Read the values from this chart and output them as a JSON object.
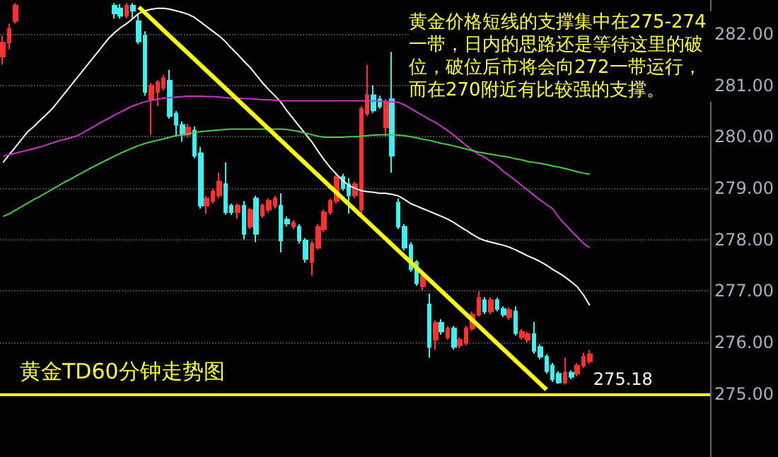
{
  "chart_data": {
    "type": "candlestick",
    "title": "黄金TD60分钟走势图",
    "annotations": [
      "黄金价格短线的支撑集中在275-274一带，日内的思路还是等待这里的破位，破位后市将会向272一带运行，而在270附近有比较强的支撑。",
      "275.18"
    ],
    "categories": [
      null,
      null,
      null,
      null,
      null,
      null,
      null,
      null,
      null,
      null,
      null,
      null,
      null,
      null,
      null,
      null,
      null,
      null,
      null,
      null,
      null,
      null,
      null,
      null,
      null,
      null,
      null,
      null,
      null,
      null,
      null,
      null,
      null,
      null,
      null,
      null,
      null,
      null,
      null,
      null,
      null,
      null,
      null,
      null,
      null,
      null,
      null,
      null,
      null,
      null,
      null,
      null,
      null,
      null,
      null,
      null,
      null,
      null,
      null,
      null,
      null,
      null,
      null,
      null,
      null,
      null,
      null,
      null,
      null,
      null,
      null,
      null,
      null,
      null,
      null,
      null,
      null,
      null,
      null,
      null,
      null,
      null,
      null,
      null,
      null,
      null,
      null,
      null,
      null,
      null,
      null,
      null,
      null,
      null,
      null,
      null,
      null,
      null,
      null,
      null,
      null,
      null,
      null,
      null,
      null,
      null,
      null,
      null,
      null,
      null,
      null,
      null,
      null,
      null,
      null
    ],
    "ohlc": [
      [
        281.56,
        281.97,
        281.4,
        281.83
      ],
      [
        281.83,
        282.2,
        281.7,
        282.1
      ],
      [
        282.25,
        282.6,
        282.2,
        282.55
      ],
      null,
      null,
      null,
      null,
      null,
      null,
      null,
      null,
      null,
      null,
      null,
      null,
      null,
      null,
      null,
      [
        282.55,
        282.6,
        282.3,
        282.4
      ],
      [
        282.5,
        282.58,
        282.3,
        282.35
      ],
      [
        282.35,
        282.6,
        282.3,
        282.55
      ],
      [
        282.55,
        282.6,
        282.3,
        282.45
      ],
      [
        282.25,
        282.4,
        281.8,
        281.85
      ],
      [
        281.97,
        282.05,
        280.8,
        280.87
      ],
      [
        280.73,
        281.05,
        280.04,
        281.0
      ],
      [
        280.87,
        281.1,
        280.6,
        281.06
      ],
      [
        280.95,
        281.2,
        280.9,
        281.14
      ],
      [
        281.09,
        281.3,
        280.35,
        280.4
      ],
      [
        280.45,
        280.5,
        280.0,
        280.23
      ],
      [
        280.23,
        280.3,
        279.9,
        280.04
      ],
      [
        280.04,
        280.25,
        279.98,
        280.18
      ],
      [
        280.12,
        280.2,
        279.58,
        279.63
      ],
      [
        279.68,
        279.8,
        278.6,
        278.66
      ],
      [
        278.66,
        278.85,
        278.5,
        278.8
      ],
      [
        278.75,
        279.0,
        278.7,
        278.94
      ],
      [
        278.86,
        279.3,
        278.8,
        279.13
      ],
      [
        279.08,
        279.5,
        278.48,
        278.53
      ],
      [
        278.66,
        278.7,
        278.48,
        278.53
      ],
      [
        278.53,
        278.7,
        278.4,
        278.66
      ],
      [
        278.66,
        278.75,
        278.0,
        278.11
      ],
      [
        278.25,
        278.62,
        278.2,
        278.58
      ],
      [
        278.8,
        278.85,
        277.95,
        278.11
      ],
      [
        278.47,
        278.7,
        278.42,
        278.66
      ],
      [
        278.58,
        278.8,
        278.52,
        278.75
      ],
      [
        278.66,
        278.85,
        278.6,
        278.8
      ],
      [
        278.66,
        278.9,
        277.75,
        277.98
      ],
      [
        278.39,
        278.45,
        278.25,
        278.31
      ],
      [
        278.25,
        278.38,
        278.2,
        278.33
      ],
      [
        278.25,
        278.3,
        277.92,
        277.98
      ],
      [
        277.98,
        278.03,
        277.55,
        277.62
      ],
      [
        277.56,
        277.97,
        277.3,
        277.92
      ],
      [
        277.84,
        278.3,
        277.8,
        278.25
      ],
      [
        278.2,
        278.58,
        278.15,
        278.53
      ],
      [
        278.53,
        278.8,
        278.48,
        278.75
      ],
      [
        278.75,
        279.3,
        278.7,
        279.22
      ],
      [
        279.22,
        279.28,
        278.95,
        279.0
      ],
      [
        279.08,
        279.2,
        278.5,
        278.86
      ],
      [
        278.86,
        279.12,
        278.8,
        279.08
      ],
      [
        278.58,
        280.6,
        278.5,
        280.54
      ],
      [
        280.45,
        281.4,
        280.4,
        280.81
      ],
      [
        280.81,
        281.0,
        280.46,
        280.51
      ],
      [
        280.73,
        280.8,
        280.54,
        280.59
      ],
      [
        280.18,
        280.73,
        280.0,
        280.68
      ],
      [
        280.73,
        281.65,
        279.3,
        279.63
      ],
      [
        278.72,
        278.8,
        278.2,
        278.25
      ],
      [
        278.25,
        278.3,
        277.79,
        277.84
      ],
      [
        277.89,
        277.95,
        277.37,
        277.42
      ],
      [
        277.56,
        277.6,
        277.1,
        277.15
      ],
      [
        277.09,
        277.34,
        277.0,
        277.29
      ],
      [
        276.74,
        276.95,
        275.7,
        275.91
      ],
      [
        276.05,
        276.43,
        275.85,
        276.38
      ],
      [
        276.38,
        276.45,
        276.15,
        276.21
      ],
      [
        276.1,
        276.32,
        276.05,
        276.27
      ],
      [
        276.27,
        276.32,
        275.86,
        275.91
      ],
      [
        275.94,
        276.1,
        275.89,
        276.05
      ],
      [
        275.99,
        276.32,
        275.94,
        276.27
      ],
      [
        276.27,
        276.6,
        276.22,
        276.54
      ],
      [
        276.54,
        277.0,
        276.5,
        276.87
      ],
      [
        276.82,
        276.88,
        276.55,
        276.6
      ],
      [
        276.6,
        276.88,
        276.55,
        276.82
      ],
      [
        276.82,
        276.87,
        276.6,
        276.65
      ],
      [
        276.65,
        276.7,
        276.49,
        276.54
      ],
      [
        276.49,
        276.68,
        276.44,
        276.63
      ],
      [
        276.6,
        276.7,
        276.13,
        276.18
      ],
      [
        276.1,
        276.26,
        276.05,
        276.21
      ],
      [
        276.05,
        276.21,
        276.0,
        276.16
      ],
      [
        276.16,
        276.4,
        275.78,
        275.83
      ],
      [
        275.91,
        275.96,
        275.67,
        275.72
      ],
      [
        275.72,
        275.77,
        275.39,
        275.44
      ],
      [
        275.55,
        275.6,
        275.23,
        275.28
      ],
      [
        275.39,
        275.44,
        275.19,
        275.22
      ],
      [
        275.22,
        275.7,
        275.18,
        275.41
      ],
      [
        275.41,
        275.46,
        275.28,
        275.33
      ],
      [
        275.39,
        275.6,
        275.34,
        275.55
      ],
      [
        275.55,
        275.8,
        275.5,
        275.72
      ],
      [
        275.63,
        275.85,
        275.58,
        275.77
      ],
      null,
      null,
      null,
      null,
      null,
      null,
      null,
      null,
      null,
      null,
      null,
      null,
      null,
      null,
      null,
      null,
      null,
      null,
      null
    ],
    "series": [
      {
        "type": "line",
        "color": "#ffffff",
        "values": [
          279.5,
          279.65,
          279.8,
          279.95,
          280.1,
          280.2,
          280.32,
          280.43,
          280.55,
          280.7,
          280.85,
          281.0,
          281.15,
          281.3,
          281.45,
          281.6,
          281.75,
          281.9,
          282.02,
          282.12,
          282.2,
          282.3,
          282.4,
          282.45,
          282.48,
          282.5,
          282.5,
          282.48,
          282.45,
          282.42,
          282.38,
          282.32,
          282.23,
          282.14,
          282.05,
          281.96,
          281.85,
          281.72,
          281.6,
          281.47,
          281.35,
          281.2,
          281.05,
          280.92,
          280.8,
          280.67,
          280.5,
          280.35,
          280.2,
          280.05,
          279.9,
          279.72,
          279.55,
          279.4,
          279.27,
          279.15,
          279.05,
          279.0,
          278.95,
          278.93,
          278.92,
          278.9,
          278.9,
          278.88,
          278.85,
          278.78,
          278.7,
          278.65,
          278.6,
          278.55,
          278.5,
          278.45,
          278.4,
          278.33,
          278.25,
          278.18,
          278.1,
          278.03,
          277.98,
          277.95,
          277.92,
          277.89,
          277.85,
          277.8,
          277.74,
          277.68,
          277.63,
          277.57,
          277.5,
          277.42,
          277.35,
          277.27,
          277.18,
          277.08,
          276.92,
          276.72,
          null,
          null,
          null,
          null,
          null,
          null,
          null,
          null,
          null,
          null,
          null,
          null,
          null,
          null,
          null,
          null,
          null,
          null,
          null
        ]
      },
      {
        "type": "line",
        "color": "#d030d0",
        "values": [
          279.62,
          279.65,
          279.68,
          279.71,
          279.74,
          279.77,
          279.8,
          279.84,
          279.88,
          279.92,
          279.95,
          279.98,
          280.02,
          280.08,
          280.15,
          280.22,
          280.29,
          280.35,
          280.42,
          280.48,
          280.54,
          280.6,
          280.64,
          280.68,
          280.71,
          280.73,
          280.75,
          280.76,
          280.77,
          280.78,
          280.79,
          280.79,
          280.79,
          280.78,
          280.78,
          280.77,
          280.76,
          280.75,
          280.75,
          280.74,
          280.74,
          280.73,
          280.72,
          280.72,
          280.71,
          280.7,
          280.7,
          280.7,
          280.7,
          280.7,
          280.7,
          280.7,
          280.7,
          280.7,
          280.7,
          280.7,
          280.7,
          280.7,
          280.7,
          280.7,
          280.7,
          280.69,
          280.69,
          280.68,
          280.67,
          280.62,
          280.55,
          280.48,
          280.41,
          280.34,
          280.28,
          280.2,
          280.12,
          280.03,
          279.93,
          279.83,
          279.74,
          279.66,
          279.6,
          279.52,
          279.44,
          279.33,
          279.24,
          279.15,
          279.05,
          278.96,
          278.86,
          278.77,
          278.68,
          278.6,
          278.43,
          278.3,
          278.17,
          278.05,
          277.93,
          277.84,
          null,
          null,
          null,
          null,
          null,
          null,
          null,
          null,
          null,
          null,
          null,
          null,
          null,
          null,
          null,
          null,
          null,
          null,
          null
        ]
      },
      {
        "type": "line",
        "color": "#40d040",
        "values": [
          278.45,
          278.5,
          278.57,
          278.64,
          278.71,
          278.78,
          278.84,
          278.91,
          278.98,
          279.05,
          279.12,
          279.18,
          279.25,
          279.31,
          279.38,
          279.44,
          279.5,
          279.56,
          279.62,
          279.68,
          279.73,
          279.78,
          279.83,
          279.87,
          279.9,
          279.93,
          279.96,
          279.99,
          280.02,
          280.04,
          280.06,
          280.08,
          280.1,
          280.11,
          280.12,
          280.13,
          280.14,
          280.15,
          280.15,
          280.15,
          280.15,
          280.15,
          280.15,
          280.15,
          280.15,
          280.15,
          280.14,
          280.12,
          280.1,
          280.07,
          280.04,
          280.01,
          279.99,
          279.99,
          279.99,
          279.99,
          280.0,
          280.0,
          280.01,
          280.02,
          280.03,
          280.04,
          280.04,
          280.04,
          280.03,
          280.02,
          280.0,
          279.98,
          279.95,
          279.93,
          279.9,
          279.87,
          279.85,
          279.82,
          279.79,
          279.76,
          279.73,
          279.7,
          279.68,
          279.66,
          279.64,
          279.62,
          279.6,
          279.57,
          279.55,
          279.52,
          279.5,
          279.48,
          279.46,
          279.43,
          279.41,
          279.38,
          279.35,
          279.32,
          279.29,
          279.27,
          null,
          null,
          null,
          null,
          null,
          null,
          null,
          null,
          null,
          null,
          null,
          null,
          null,
          null,
          null,
          null,
          null,
          null,
          null
        ]
      },
      {
        "type": "line",
        "color": "#ffff00",
        "values": [
          null,
          null,
          null,
          null,
          null,
          null,
          null,
          null,
          null,
          null,
          null,
          null,
          null,
          null,
          null,
          null,
          null,
          null,
          null,
          null,
          null,
          null,
          282.52,
          null,
          null,
          null,
          null,
          null,
          null,
          null,
          null,
          null,
          null,
          null,
          null,
          null,
          null,
          null,
          null,
          null,
          null,
          null,
          null,
          null,
          null,
          null,
          null,
          null,
          null,
          null,
          null,
          null,
          null,
          null,
          null,
          null,
          null,
          null,
          null,
          null,
          null,
          null,
          null,
          null,
          null,
          null,
          null,
          null,
          null,
          null,
          null,
          null,
          null,
          null,
          null,
          null,
          null,
          null,
          null,
          null,
          null,
          null,
          null,
          null,
          null,
          null,
          null,
          null,
          275.08,
          null,
          null,
          null,
          null,
          null,
          null,
          null,
          null,
          null,
          null,
          null,
          null,
          null,
          null,
          null,
          null,
          null,
          null,
          null,
          null,
          null,
          null,
          null,
          null,
          null,
          null
        ]
      }
    ],
    "ref_lines": [
      {
        "axis": "y",
        "value": 275,
        "color": "#ffff00"
      }
    ],
    "ylim": [
      273.77,
      282.66
    ],
    "yticks": [
      {
        "value": 275,
        "label": "275.00"
      },
      {
        "value": 276,
        "label": "276.00"
      },
      {
        "value": 277,
        "label": "277.00"
      },
      {
        "value": 278,
        "label": "278.00"
      },
      {
        "value": 279,
        "label": "279.00"
      },
      {
        "value": 280,
        "label": "280.00"
      },
      {
        "value": 281,
        "label": "281.00"
      },
      {
        "value": 282,
        "label": "282.00"
      }
    ],
    "grid": "y",
    "tick_labels": "y"
  }
}
